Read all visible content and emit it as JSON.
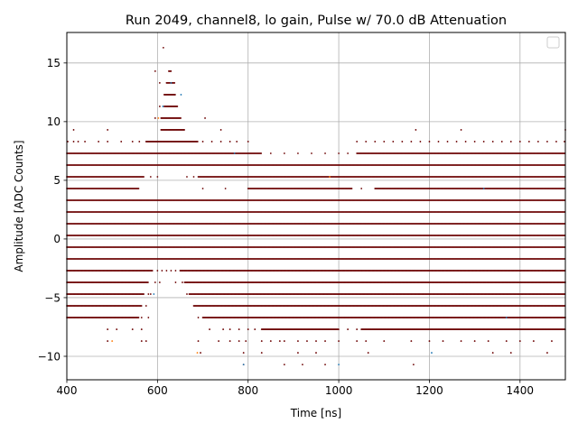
{
  "chart_data": {
    "type": "scatter",
    "title": "Run 2049, channel8, lo gain, Pulse w/ 70.0 dB Attenuation",
    "xlabel": "Time [ns]",
    "ylabel": "Amplitude [ADC Counts]",
    "xlim": [
      400,
      1500
    ],
    "ylim": [
      -12.0,
      17.6
    ],
    "xticks": [
      400,
      600,
      800,
      1000,
      1200,
      1400
    ],
    "yticks": [
      -10,
      -5,
      0,
      5,
      10,
      15
    ],
    "grid": true,
    "legend": "top-right, empty",
    "dominant_color": "#6b0000",
    "minority_colors": [
      "#1f77b4",
      "#ff7f0e"
    ],
    "levels": [
      -10.7,
      -9.7,
      -8.7,
      -7.7,
      -6.7,
      -5.7,
      -4.7,
      -3.7,
      -2.7,
      -1.7,
      -0.7,
      0.3,
      1.3,
      2.3,
      3.3,
      4.3,
      5.3,
      6.3,
      7.3,
      8.3,
      9.3,
      10.3,
      11.3,
      12.3,
      13.3,
      14.3,
      16.3
    ],
    "band_ranges": [
      {
        "y": 9.3,
        "segments": [
          [
            608,
            660
          ]
        ],
        "sparse": [
          415,
          490,
          740,
          1170,
          1270,
          1500
        ]
      },
      {
        "y": 10.3,
        "segments": [
          [
            608,
            652
          ]
        ],
        "sparse": [
          595,
          705
        ]
      },
      {
        "y": 11.3,
        "segments": [
          [
            615,
            645
          ]
        ],
        "sparse": [
          605
        ]
      },
      {
        "y": 12.3,
        "segments": [
          [
            615,
            640
          ]
        ],
        "sparse": []
      },
      {
        "y": 13.3,
        "segments": [
          [
            620,
            638
          ]
        ],
        "sparse": [
          605
        ]
      },
      {
        "y": 14.3,
        "segments": [
          [
            625,
            630
          ]
        ],
        "sparse": [
          595
        ]
      },
      {
        "y": 16.3,
        "segments": [],
        "sparse": [
          613
        ]
      },
      {
        "y": 8.3,
        "segments": [
          [
            575,
            690
          ]
        ],
        "sparse": [
          402,
          415,
          425,
          440,
          470,
          490,
          520,
          545,
          560,
          700,
          720,
          740,
          760,
          775,
          800,
          1040,
          1060,
          1080,
          1100,
          1120,
          1140,
          1160,
          1180,
          1200,
          1220,
          1240,
          1260,
          1280,
          1300,
          1320,
          1340,
          1360,
          1380,
          1400,
          1420,
          1440,
          1460,
          1480,
          1498
        ]
      },
      {
        "y": 7.3,
        "segments": [
          [
            400,
            830
          ],
          [
            1040,
            1500
          ]
        ],
        "sparse": [
          850,
          880,
          910,
          940,
          970,
          1000,
          1020
        ]
      },
      {
        "y": 6.3,
        "segments": [
          [
            400,
            1500
          ]
        ],
        "sparse": []
      },
      {
        "y": 5.3,
        "segments": [
          [
            400,
            570
          ],
          [
            690,
            1500
          ]
        ],
        "sparse": [
          585,
          600,
          665,
          680
        ]
      },
      {
        "y": 4.3,
        "segments": [
          [
            400,
            560
          ],
          [
            800,
            1030
          ],
          [
            1080,
            1500
          ]
        ],
        "sparse": [
          700,
          750,
          1050
        ]
      },
      {
        "y": 3.3,
        "segments": [
          [
            400,
            1500
          ]
        ],
        "sparse": []
      },
      {
        "y": 2.3,
        "segments": [
          [
            400,
            1500
          ]
        ],
        "sparse": []
      },
      {
        "y": 1.3,
        "segments": [
          [
            400,
            1500
          ]
        ],
        "sparse": []
      },
      {
        "y": 0.3,
        "segments": [
          [
            400,
            1500
          ]
        ],
        "sparse": []
      },
      {
        "y": -0.7,
        "segments": [
          [
            400,
            1500
          ]
        ],
        "sparse": []
      },
      {
        "y": -1.7,
        "segments": [
          [
            400,
            1500
          ]
        ],
        "sparse": []
      },
      {
        "y": -2.7,
        "segments": [
          [
            400,
            590
          ],
          [
            650,
            1500
          ]
        ],
        "sparse": [
          600,
          610,
          620,
          630,
          640
        ]
      },
      {
        "y": -3.7,
        "segments": [
          [
            400,
            580
          ],
          [
            660,
            1500
          ]
        ],
        "sparse": [
          595,
          605,
          640,
          655
        ]
      },
      {
        "y": -4.7,
        "segments": [
          [
            400,
            570
          ],
          [
            670,
            1500
          ]
        ],
        "sparse": [
          580,
          585,
          665
        ]
      },
      {
        "y": -5.7,
        "segments": [
          [
            400,
            565
          ],
          [
            680,
            1500
          ]
        ],
        "sparse": [
          575
        ]
      },
      {
        "y": -6.7,
        "segments": [
          [
            400,
            560
          ],
          [
            700,
            1500
          ]
        ],
        "sparse": [
          565,
          580,
          690
        ]
      },
      {
        "y": -7.7,
        "segments": [
          [
            830,
            1000
          ],
          [
            1050,
            1500
          ]
        ],
        "sparse": [
          490,
          510,
          545,
          565,
          715,
          745,
          760,
          780,
          800,
          815,
          1020,
          1040
        ]
      },
      {
        "y": -8.7,
        "segments": [],
        "sparse": [
          490,
          565,
          575,
          690,
          735,
          760,
          780,
          795,
          830,
          850,
          870,
          880,
          910,
          930,
          950,
          970,
          1000,
          1040,
          1060,
          1100,
          1160,
          1200,
          1230,
          1270,
          1300,
          1330,
          1370,
          1400,
          1430,
          1470
        ]
      },
      {
        "y": -9.7,
        "segments": [],
        "sparse": [
          695,
          790,
          830,
          910,
          950,
          1065,
          1340,
          1380,
          1460
        ]
      },
      {
        "y": -10.7,
        "segments": [],
        "sparse": [
          790,
          880,
          920,
          970,
          1165
        ]
      }
    ],
    "colored_points": [
      {
        "x": 630,
        "y": 13.3,
        "color": "#1f77b4"
      },
      {
        "x": 612,
        "y": 11.3,
        "color": "#1f77b4"
      },
      {
        "x": 602,
        "y": 10.3,
        "color": "#ff7f0e"
      },
      {
        "x": 652,
        "y": 12.3,
        "color": "#1f77b4"
      },
      {
        "x": 770,
        "y": 7.3,
        "color": "#1f77b4"
      },
      {
        "x": 980,
        "y": 5.3,
        "color": "#ff7f0e"
      },
      {
        "x": 1320,
        "y": 4.3,
        "color": "#1f77b4"
      },
      {
        "x": 592,
        "y": -4.7,
        "color": "#1f77b4"
      },
      {
        "x": 688,
        "y": -9.7,
        "color": "#ff7f0e"
      },
      {
        "x": 790,
        "y": -10.7,
        "color": "#1f77b4"
      },
      {
        "x": 1000,
        "y": -10.7,
        "color": "#1f77b4"
      },
      {
        "x": 1205,
        "y": -9.7,
        "color": "#1f77b4"
      },
      {
        "x": 500,
        "y": -8.7,
        "color": "#ff7f0e"
      },
      {
        "x": 1370,
        "y": -6.7,
        "color": "#1f77b4"
      }
    ]
  }
}
